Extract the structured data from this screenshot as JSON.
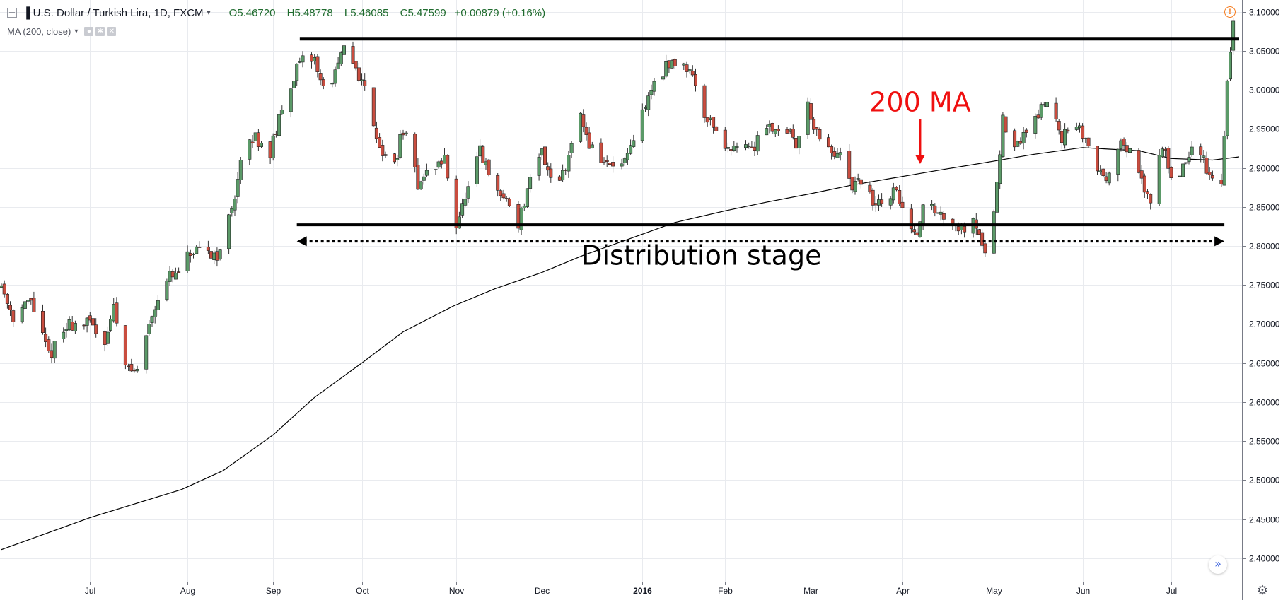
{
  "header": {
    "symbol_title": "U.S. Dollar / Turkish Lira, 1D, FXCM",
    "ohlc": {
      "open": "O5.46720",
      "high": "H5.48778",
      "low": "L5.46085",
      "close": "C5.47599"
    },
    "change": "+0.00879 (+0.16%)"
  },
  "indicator_label": "MA (200, close)",
  "icons": {
    "collapse": "minus-square-icon",
    "symbol": "bars-icon",
    "dropdown": "chevron-down-icon",
    "visibility": "eye-icon",
    "settings": "gear-icon",
    "remove": "close-icon",
    "alert": "alert-circle-icon",
    "scroll": "double-chevron-right-icon",
    "chart_settings": "gear-icon"
  },
  "colors": {
    "up": "#5b9a68",
    "down": "#c94d3f",
    "ma_line": "#000000",
    "annotation_red": "#ef0f0f",
    "grid": "#e9ebef",
    "text": "#131722"
  },
  "chart_data": {
    "type": "candlestick",
    "title": "",
    "xlabel": "",
    "ylabel": "",
    "x_range": [
      "2015-06-01",
      "2016-07-24"
    ],
    "ylim": [
      2.37,
      3.115
    ],
    "y_ticks": [
      "3.10000",
      "3.05000",
      "3.00000",
      "2.95000",
      "2.90000",
      "2.85000",
      "2.80000",
      "2.75000",
      "2.70000",
      "2.65000",
      "2.60000",
      "2.55000",
      "2.50000",
      "2.45000",
      "2.40000"
    ],
    "x_ticks": [
      {
        "label": "Jul",
        "date": "2015-07-01"
      },
      {
        "label": "Aug",
        "date": "2015-08-03"
      },
      {
        "label": "Sep",
        "date": "2015-09-01"
      },
      {
        "label": "Oct",
        "date": "2015-10-01"
      },
      {
        "label": "Nov",
        "date": "2015-11-02"
      },
      {
        "label": "Dec",
        "date": "2015-12-01"
      },
      {
        "label": "2016",
        "date": "2016-01-04"
      },
      {
        "label": "Feb",
        "date": "2016-02-01"
      },
      {
        "label": "Mar",
        "date": "2016-03-01"
      },
      {
        "label": "Apr",
        "date": "2016-04-01"
      },
      {
        "label": "May",
        "date": "2016-05-02"
      },
      {
        "label": "Jun",
        "date": "2016-06-01"
      },
      {
        "label": "Jul",
        "date": "2016-07-01"
      }
    ],
    "price_anchors": [
      [
        "2015-06-01",
        2.75
      ],
      [
        "2015-06-05",
        2.71
      ],
      [
        "2015-06-11",
        2.73
      ],
      [
        "2015-06-17",
        2.66
      ],
      [
        "2015-06-24",
        2.7
      ],
      [
        "2015-07-01",
        2.7
      ],
      [
        "2015-07-06",
        2.68
      ],
      [
        "2015-07-09",
        2.72
      ],
      [
        "2015-07-14",
        2.64
      ],
      [
        "2015-07-17",
        2.64
      ],
      [
        "2015-07-21",
        2.7
      ],
      [
        "2015-07-26",
        2.76
      ],
      [
        "2015-07-30",
        2.76
      ],
      [
        "2015-08-04",
        2.79
      ],
      [
        "2015-08-10",
        2.79
      ],
      [
        "2015-08-14",
        2.79
      ],
      [
        "2015-08-18",
        2.85
      ],
      [
        "2015-08-22",
        2.92
      ],
      [
        "2015-08-26",
        2.94
      ],
      [
        "2015-08-31",
        2.92
      ],
      [
        "2015-09-03",
        2.96
      ],
      [
        "2015-09-08",
        3.02
      ],
      [
        "2015-09-12",
        3.04
      ],
      [
        "2015-09-15",
        3.04
      ],
      [
        "2015-09-18",
        3.0
      ],
      [
        "2015-09-22",
        3.02
      ],
      [
        "2015-09-25",
        3.05
      ],
      [
        "2015-09-29",
        3.03
      ],
      [
        "2015-10-03",
        2.99
      ],
      [
        "2015-10-07",
        2.93
      ],
      [
        "2015-10-11",
        2.89
      ],
      [
        "2015-10-15",
        2.95
      ],
      [
        "2015-10-20",
        2.88
      ],
      [
        "2015-10-25",
        2.9
      ],
      [
        "2015-10-29",
        2.91
      ],
      [
        "2015-11-02",
        2.83
      ],
      [
        "2015-11-06",
        2.87
      ],
      [
        "2015-11-10",
        2.92
      ],
      [
        "2015-11-15",
        2.87
      ],
      [
        "2015-11-19",
        2.86
      ],
      [
        "2015-11-23",
        2.83
      ],
      [
        "2015-11-27",
        2.88
      ],
      [
        "2015-12-01",
        2.92
      ],
      [
        "2015-12-05",
        2.88
      ],
      [
        "2015-12-09",
        2.9
      ],
      [
        "2015-12-13",
        2.98
      ],
      [
        "2015-12-17",
        2.93
      ],
      [
        "2015-12-21",
        2.91
      ],
      [
        "2015-12-25",
        2.9
      ],
      [
        "2015-12-30",
        2.91
      ],
      [
        "2016-01-04",
        2.97
      ],
      [
        "2016-01-09",
        3.02
      ],
      [
        "2016-01-13",
        3.03
      ],
      [
        "2016-01-17",
        3.04
      ],
      [
        "2016-01-21",
        3.02
      ],
      [
        "2016-01-25",
        2.97
      ],
      [
        "2016-01-29",
        2.95
      ],
      [
        "2016-02-02",
        2.92
      ],
      [
        "2016-02-06",
        2.94
      ],
      [
        "2016-02-10",
        2.92
      ],
      [
        "2016-02-14",
        2.96
      ],
      [
        "2016-02-18",
        2.95
      ],
      [
        "2016-02-22",
        2.95
      ],
      [
        "2016-02-25",
        2.93
      ],
      [
        "2016-02-29",
        2.98
      ],
      [
        "2016-03-04",
        2.93
      ],
      [
        "2016-03-08",
        2.92
      ],
      [
        "2016-03-12",
        2.91
      ],
      [
        "2016-03-15",
        2.87
      ],
      [
        "2016-03-19",
        2.89
      ],
      [
        "2016-03-22",
        2.85
      ],
      [
        "2016-03-26",
        2.86
      ],
      [
        "2016-03-30",
        2.87
      ],
      [
        "2016-04-02",
        2.84
      ],
      [
        "2016-04-05",
        2.81
      ],
      [
        "2016-04-09",
        2.86
      ],
      [
        "2016-04-13",
        2.84
      ],
      [
        "2016-04-17",
        2.84
      ],
      [
        "2016-04-21",
        2.82
      ],
      [
        "2016-04-25",
        2.84
      ],
      [
        "2016-04-29",
        2.79
      ],
      [
        "2016-05-02",
        2.85
      ],
      [
        "2016-05-05",
        2.96
      ],
      [
        "2016-05-09",
        2.92
      ],
      [
        "2016-05-13",
        2.95
      ],
      [
        "2016-05-17",
        2.97
      ],
      [
        "2016-05-21",
        2.99
      ],
      [
        "2016-05-25",
        2.94
      ],
      [
        "2016-05-29",
        2.95
      ],
      [
        "2016-06-02",
        2.94
      ],
      [
        "2016-06-05",
        2.9
      ],
      [
        "2016-06-09",
        2.89
      ],
      [
        "2016-06-13",
        2.93
      ],
      [
        "2016-06-17",
        2.92
      ],
      [
        "2016-06-21",
        2.88
      ],
      [
        "2016-06-24",
        2.86
      ],
      [
        "2016-06-28",
        2.93
      ],
      [
        "2016-07-02",
        2.88
      ],
      [
        "2016-07-06",
        2.91
      ],
      [
        "2016-07-10",
        2.93
      ],
      [
        "2016-07-14",
        2.89
      ],
      [
        "2016-07-18",
        2.88
      ],
      [
        "2016-07-20",
        3.01
      ],
      [
        "2016-07-22",
        3.09
      ],
      [
        "2016-07-24",
        3.05
      ]
    ],
    "ma_200": {
      "name": "MA (200, close)",
      "points": [
        [
          "2015-06-01",
          2.411
        ],
        [
          "2015-07-01",
          2.452
        ],
        [
          "2015-08-01",
          2.488
        ],
        [
          "2015-08-15",
          2.512
        ],
        [
          "2015-09-01",
          2.558
        ],
        [
          "2015-09-15",
          2.606
        ],
        [
          "2015-10-01",
          2.65
        ],
        [
          "2015-10-15",
          2.69
        ],
        [
          "2015-11-01",
          2.723
        ],
        [
          "2015-11-15",
          2.745
        ],
        [
          "2015-12-01",
          2.766
        ],
        [
          "2015-12-15",
          2.788
        ],
        [
          "2016-01-01",
          2.811
        ],
        [
          "2016-01-15",
          2.83
        ],
        [
          "2016-02-01",
          2.845
        ],
        [
          "2016-02-15",
          2.856
        ],
        [
          "2016-03-01",
          2.867
        ],
        [
          "2016-03-15",
          2.878
        ],
        [
          "2016-04-01",
          2.889
        ],
        [
          "2016-04-15",
          2.898
        ],
        [
          "2016-05-01",
          2.908
        ],
        [
          "2016-05-15",
          2.917
        ],
        [
          "2016-06-01",
          2.926
        ],
        [
          "2016-06-10",
          2.924
        ],
        [
          "2016-06-20",
          2.922
        ],
        [
          "2016-07-01",
          2.912
        ],
        [
          "2016-07-15",
          2.91
        ],
        [
          "2016-07-24",
          2.914
        ]
      ]
    },
    "annotations": {
      "resistance_line": {
        "y": 3.065,
        "from": "2015-09-10",
        "to": "2016-07-24"
      },
      "support_line": {
        "y": 2.827,
        "from": "2015-09-09",
        "to": "2016-07-19"
      },
      "range_arrow": {
        "y": 2.806,
        "from": "2015-09-09",
        "to": "2016-07-19"
      },
      "range_label": {
        "text": "Distribution stage",
        "y": 2.787,
        "date": "2016-01-24"
      },
      "ma_label": {
        "text": "200 MA",
        "y": 2.985,
        "date": "2016-04-07"
      },
      "ma_arrow": {
        "date": "2016-04-07",
        "from_y": 2.962,
        "to_y": 2.905
      }
    }
  }
}
